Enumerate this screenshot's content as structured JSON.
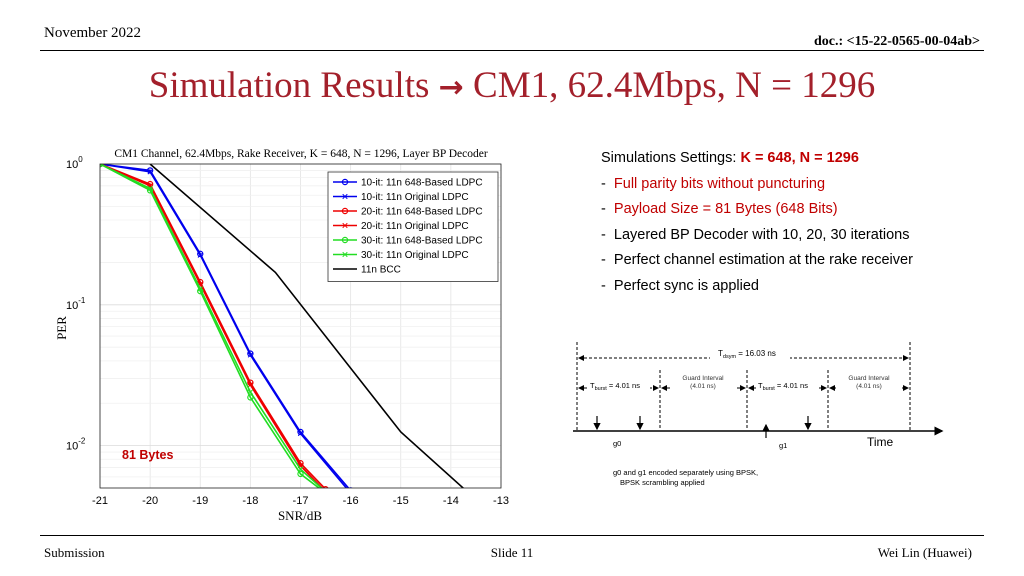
{
  "header": {
    "date": "November 2022",
    "doc": "doc.: <15-22-0565-00-04ab>"
  },
  "title": {
    "text": "Simulation Results",
    "arrow": "→",
    "rest": "CM1, 62.4Mbps, N = 1296"
  },
  "footer": {
    "left": "Submission",
    "center": "Slide 11",
    "right": "Wei Lin (Huawei)"
  },
  "settings": {
    "heading": "Simulations Settings:",
    "heading_highlight": "K = 648, N = 1296",
    "items": [
      {
        "bullet": "-",
        "text": "Full parity bits without puncturing",
        "highlight": true
      },
      {
        "bullet": "-",
        "text": "Payload Size = 81 Bytes (648 Bits)",
        "highlight": true
      },
      {
        "bullet": "-",
        "text": "Layered BP Decoder with 10, 20, 30 iterations",
        "highlight": false
      },
      {
        "bullet": "-",
        "text": "Perfect channel estimation at the rake receiver",
        "highlight": false
      },
      {
        "bullet": "-",
        "text": "Perfect sync is applied",
        "highlight": false
      }
    ]
  },
  "colors": {
    "title": "#a3202b",
    "highlight": "#c00000",
    "blue": "#0000ee",
    "red": "#ee0000",
    "green": "#22dd22",
    "black": "#000000"
  },
  "chart_data": {
    "type": "line",
    "title": "CM1 Channel, 62.4Mbps, Rake Receiver, K = 648, N = 1296, Layer BP Decoder",
    "xlabel": "SNR/dB",
    "ylabel": "PER",
    "xlim": [
      -21,
      -13
    ],
    "ylim": [
      0.005,
      1
    ],
    "yscale": "log",
    "grid": true,
    "legend_position": "top-right",
    "xticks": [
      "-21",
      "-20",
      "-19",
      "-18",
      "-17",
      "-16",
      "-15",
      "-14",
      "-13"
    ],
    "yticks": [
      {
        "base": "10",
        "exp": "0",
        "value": 1
      },
      {
        "base": "10",
        "exp": "-1",
        "value": 0.1
      },
      {
        "base": "10",
        "exp": "-2",
        "value": 0.01
      }
    ],
    "annotation": {
      "text": "81 Bytes",
      "x": -20.5,
      "y": 0.0085
    },
    "series": [
      {
        "name": "10-it: 11n 648-Based LDPC",
        "color": "#0000ee",
        "marker": "circle",
        "x": [
          -21,
          -20,
          -19,
          -18,
          -17,
          -16
        ],
        "y": [
          1,
          0.9,
          0.23,
          0.045,
          0.0125,
          0.0048
        ]
      },
      {
        "name": "10-it: 11n Original LDPC",
        "color": "#0000ee",
        "marker": "x",
        "x": [
          -21,
          -20,
          -19,
          -18,
          -17,
          -16
        ],
        "y": [
          1,
          0.88,
          0.225,
          0.044,
          0.0122,
          0.0046
        ]
      },
      {
        "name": "20-it: 11n 648-Based LDPC",
        "color": "#ee0000",
        "marker": "circle",
        "x": [
          -21,
          -20,
          -19,
          -18,
          -17,
          -16.5
        ],
        "y": [
          1,
          0.72,
          0.145,
          0.028,
          0.0075,
          0.0049
        ]
      },
      {
        "name": "20-it: 11n Original LDPC",
        "color": "#ee0000",
        "marker": "x",
        "x": [
          -21,
          -20,
          -19,
          -18,
          -17,
          -16.5
        ],
        "y": [
          1,
          0.7,
          0.14,
          0.027,
          0.0072,
          0.0047
        ]
      },
      {
        "name": "30-it: 11n 648-Based LDPC",
        "color": "#22dd22",
        "marker": "circle",
        "x": [
          -21,
          -20,
          -19,
          -18,
          -17,
          -16.5
        ],
        "y": [
          1,
          0.65,
          0.125,
          0.022,
          0.0063,
          0.0046
        ]
      },
      {
        "name": "30-it: 11n Original LDPC",
        "color": "#22dd22",
        "marker": "x",
        "x": [
          -21,
          -20,
          -19,
          -18,
          -17,
          -16.5
        ],
        "y": [
          1,
          0.67,
          0.13,
          0.024,
          0.0068,
          0.0047
        ]
      },
      {
        "name": "11n BCC",
        "color": "#000000",
        "marker": "none",
        "x": [
          -20,
          -17.5,
          -15,
          -13.7
        ],
        "y": [
          1,
          0.17,
          0.0125,
          0.0048
        ]
      }
    ]
  },
  "timing": {
    "t_dsym": "T",
    "t_dsym_sub": "dsym",
    "t_dsym_val": " = 16.03 ns",
    "t_burst": "T",
    "t_burst_sub": "burst",
    "t_burst_val": " = 4.01 ns",
    "guard_line1": "Guard Interval",
    "guard_line2": "(4.01 ns)",
    "g0": "g0",
    "g1": "g1",
    "time": "Time",
    "caption1": "g0 and g1 encoded separately using BPSK,",
    "caption2": "BPSK scrambling applied"
  }
}
